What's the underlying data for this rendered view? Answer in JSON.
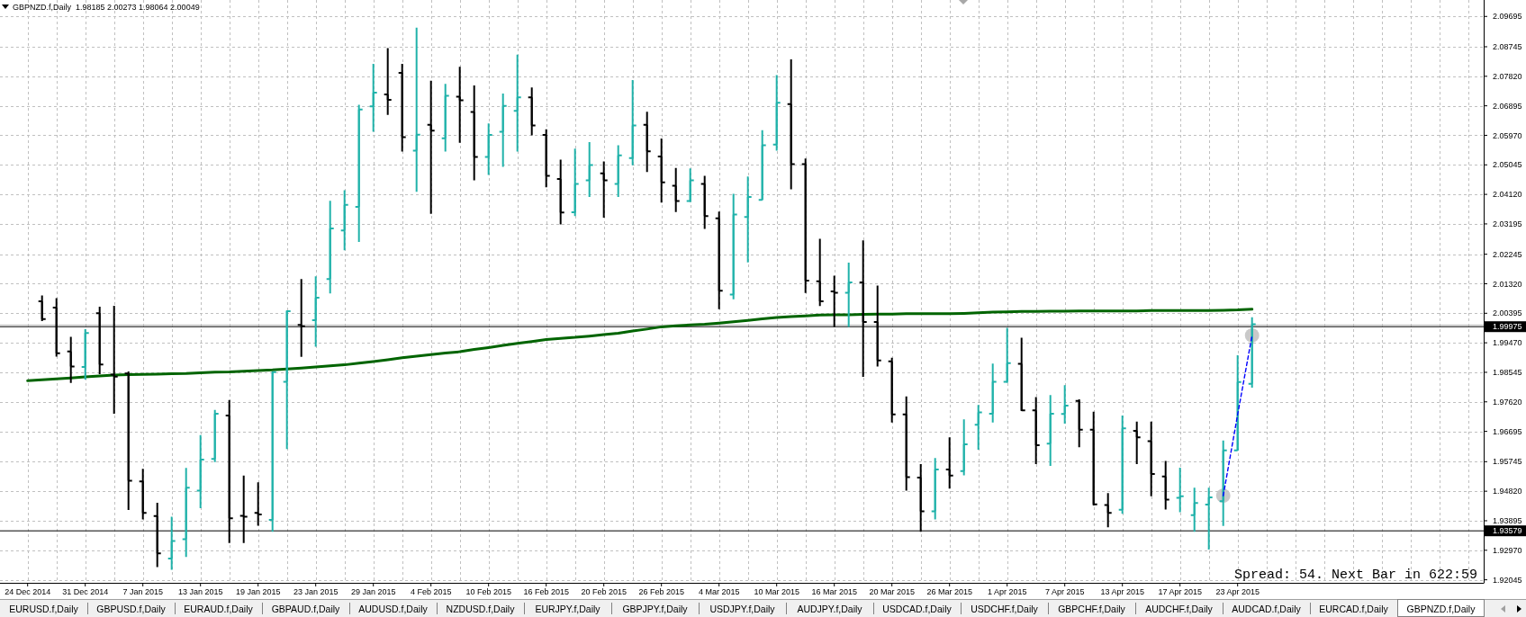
{
  "chart_data": {
    "type": "candlestick",
    "title": "GBPNZD.f,Daily  1.98185 2.00273 1.98064 2.00049",
    "categories": [
      "24 Dec 2014",
      null,
      null,
      null,
      "31 Dec 2014",
      null,
      null,
      null,
      "7 Jan 2015",
      null,
      null,
      null,
      "13 Jan 2015",
      null,
      null,
      null,
      "19 Jan 2015",
      null,
      null,
      null,
      "23 Jan 2015",
      null,
      null,
      null,
      "29 Jan 2015",
      null,
      null,
      null,
      "4 Feb 2015",
      null,
      null,
      null,
      "10 Feb 2015",
      null,
      null,
      null,
      "16 Feb 2015",
      null,
      null,
      null,
      "20 Feb 2015",
      null,
      null,
      null,
      "26 Feb 2015",
      null,
      null,
      null,
      "4 Mar 2015",
      null,
      null,
      null,
      "10 Mar 2015",
      null,
      null,
      null,
      "16 Mar 2015",
      null,
      null,
      null,
      "20 Mar 2015",
      null,
      null,
      null,
      "26 Mar 2015",
      null,
      null,
      null,
      "1 Apr 2015",
      null,
      null,
      null,
      "7 Apr 2015",
      null,
      null,
      null,
      "13 Apr 2015",
      null,
      null,
      null,
      "17 Apr 2015",
      null,
      null,
      null,
      "23 Apr 2015",
      null
    ],
    "ohlc": [
      null,
      [
        2.0077,
        2.0095,
        2.0015,
        2.0021
      ],
      [
        2.0057,
        2.0087,
        1.9904,
        1.9914
      ],
      [
        1.992,
        1.9966,
        1.9821,
        1.9873
      ],
      [
        1.9871,
        1.999,
        1.9832,
        1.9978
      ],
      [
        2.004,
        2.006,
        1.9849,
        1.9879
      ],
      [
        1.9847,
        2.0063,
        1.9725,
        1.9841
      ],
      [
        1.9851,
        1.9857,
        1.9423,
        1.9515
      ],
      [
        1.9513,
        1.9552,
        1.9394,
        1.9414
      ],
      [
        1.9404,
        1.9446,
        1.9244,
        1.9287
      ],
      [
        1.9271,
        1.9402,
        1.9236,
        1.9326
      ],
      [
        1.9332,
        1.9555,
        1.9276,
        1.9493
      ],
      [
        1.9484,
        1.9658,
        1.9429,
        1.9581
      ],
      [
        1.9583,
        1.9737,
        1.9573,
        1.9725
      ],
      [
        1.9719,
        1.9768,
        1.932,
        1.9397
      ],
      [
        1.9405,
        1.9531,
        1.932,
        1.9402
      ],
      [
        1.9414,
        1.951,
        1.9374,
        1.9409
      ],
      [
        1.9392,
        1.9857,
        1.9355,
        1.9855
      ],
      [
        1.9825,
        2.0049,
        1.9614,
        2.0046
      ],
      [
        2.0003,
        2.0147,
        1.9903,
        1.9999
      ],
      [
        2.0018,
        2.0155,
        1.9935,
        2.0088
      ],
      [
        2.0147,
        2.0392,
        2.0102,
        2.0305
      ],
      [
        2.0299,
        2.0425,
        2.0237,
        2.0379
      ],
      [
        2.0373,
        2.0693,
        2.0263,
        2.0678
      ],
      [
        2.0688,
        2.0821,
        2.0608,
        2.0731
      ],
      [
        2.0725,
        2.087,
        2.0661,
        2.0708
      ],
      [
        2.0793,
        2.0821,
        2.0546,
        2.0591
      ],
      [
        2.0549,
        2.0934,
        2.042,
        2.0599
      ],
      [
        2.063,
        2.0768,
        2.0351,
        2.0612
      ],
      [
        2.0588,
        2.0758,
        2.0546,
        2.0721
      ],
      [
        2.0718,
        2.0812,
        2.0574,
        2.0707
      ],
      [
        2.067,
        2.0753,
        2.0456,
        2.0529
      ],
      [
        2.0529,
        2.0634,
        2.0473,
        2.0598
      ],
      [
        2.0608,
        2.0728,
        2.0498,
        2.0689
      ],
      [
        2.0674,
        2.085,
        2.0546,
        2.0716
      ],
      [
        2.0716,
        2.0747,
        2.0597,
        2.0628
      ],
      [
        2.0598,
        2.0616,
        2.0434,
        2.047
      ],
      [
        2.046,
        2.0521,
        2.0318,
        2.0355
      ],
      [
        2.0356,
        2.0555,
        2.0344,
        2.0445
      ],
      [
        2.0456,
        2.0576,
        2.0404,
        2.0504
      ],
      [
        2.0478,
        2.0515,
        2.0339,
        2.0456
      ],
      [
        2.0445,
        2.0566,
        2.0404,
        2.0534
      ],
      [
        2.0526,
        2.077,
        2.0503,
        2.0628
      ],
      [
        2.063,
        2.0671,
        2.0482,
        2.0547
      ],
      [
        2.0531,
        2.0587,
        2.0386,
        2.045
      ],
      [
        2.0439,
        2.0495,
        2.0357,
        2.0391
      ],
      [
        2.0391,
        2.0493,
        2.0388,
        2.0456
      ],
      [
        2.0445,
        2.047,
        2.0304,
        2.0344
      ],
      [
        2.0337,
        2.0358,
        2.0052,
        2.011
      ],
      [
        2.0098,
        2.0414,
        2.0083,
        2.0349
      ],
      [
        2.0341,
        2.0468,
        2.0199,
        2.0404
      ],
      [
        2.0395,
        2.0613,
        2.0394,
        2.0566
      ],
      [
        2.0568,
        2.0786,
        2.0549,
        2.0699
      ],
      [
        2.0695,
        2.0835,
        2.0428,
        2.0507
      ],
      [
        2.0507,
        2.0524,
        2.0103,
        2.0142
      ],
      [
        2.014,
        2.0273,
        2.0062,
        2.0077
      ],
      [
        2.0108,
        2.0157,
        1.9997,
        2.0104
      ],
      [
        2.0104,
        2.0198,
        1.9997,
        2.0136
      ],
      [
        2.0136,
        2.0268,
        1.984,
        2.0012
      ],
      [
        2.0012,
        2.0126,
        1.9873,
        1.9892
      ],
      [
        1.9889,
        1.99,
        1.9697,
        1.9723
      ],
      [
        1.9723,
        1.9779,
        1.9484,
        1.9526
      ],
      [
        1.9525,
        1.9567,
        1.9355,
        1.9419
      ],
      [
        1.9419,
        1.9586,
        1.9394,
        1.955
      ],
      [
        1.955,
        1.9651,
        1.949,
        1.9531
      ],
      [
        1.9545,
        1.9707,
        1.9532,
        1.9629
      ],
      [
        1.969,
        1.9752,
        1.9612,
        1.9729
      ],
      [
        1.9725,
        1.9882,
        1.9697,
        1.9825
      ],
      [
        1.9825,
        1.9994,
        1.9821,
        1.9883
      ],
      [
        1.9881,
        1.9963,
        1.9733,
        1.9735
      ],
      [
        1.9735,
        1.9777,
        1.9567,
        1.9626
      ],
      [
        1.9631,
        1.9783,
        1.9561,
        1.9725
      ],
      [
        1.9724,
        1.9814,
        1.9694,
        1.975
      ],
      [
        1.9765,
        1.977,
        1.962,
        1.9675
      ],
      [
        1.9675,
        1.9731,
        1.9437,
        1.9441
      ],
      [
        1.9439,
        1.9476,
        1.9369,
        1.9414
      ],
      [
        1.9424,
        1.9719,
        1.9411,
        1.9679
      ],
      [
        1.9671,
        1.97,
        1.9567,
        1.9651
      ],
      [
        1.9639,
        1.97,
        1.9466,
        1.9536
      ],
      [
        1.9528,
        1.9577,
        1.9425,
        1.9456
      ],
      [
        1.9461,
        1.9556,
        1.9416,
        1.9466
      ],
      [
        1.9407,
        1.9493,
        1.9355,
        1.9445
      ],
      [
        1.944,
        1.9493,
        1.9299,
        1.9463
      ],
      [
        1.9451,
        1.9641,
        1.9373,
        1.961
      ],
      [
        1.961,
        1.9908,
        1.9609,
        1.9824
      ],
      [
        1.98185,
        2.00273,
        1.98064,
        2.00049
      ]
    ],
    "colors": [
      null,
      "#000000",
      "#000000",
      "#000000",
      "#20b2aa",
      "#000000",
      "#000000",
      "#000000",
      "#000000",
      "#000000",
      "#20b2aa",
      "#20b2aa",
      "#20b2aa",
      "#20b2aa",
      "#000000",
      "#000000",
      "#000000",
      "#20b2aa",
      "#20b2aa",
      "#000000",
      "#20b2aa",
      "#20b2aa",
      "#20b2aa",
      "#20b2aa",
      "#20b2aa",
      "#000000",
      "#000000",
      "#20b2aa",
      "#000000",
      "#20b2aa",
      "#000000",
      "#000000",
      "#20b2aa",
      "#20b2aa",
      "#20b2aa",
      "#000000",
      "#000000",
      "#000000",
      "#20b2aa",
      "#20b2aa",
      "#000000",
      "#20b2aa",
      "#20b2aa",
      "#000000",
      "#000000",
      "#000000",
      "#20b2aa",
      "#000000",
      "#000000",
      "#20b2aa",
      "#20b2aa",
      "#20b2aa",
      "#20b2aa",
      "#000000",
      "#000000",
      "#000000",
      "#000000",
      "#20b2aa",
      "#000000",
      "#000000",
      "#000000",
      "#000000",
      "#000000",
      "#20b2aa",
      "#000000",
      "#20b2aa",
      "#20b2aa",
      "#20b2aa",
      "#20b2aa",
      "#000000",
      "#000000",
      "#20b2aa",
      "#20b2aa",
      "#000000",
      "#000000",
      "#000000",
      "#20b2aa",
      "#000000",
      "#000000",
      "#000000",
      "#20b2aa",
      "#20b2aa",
      "#20b2aa",
      "#20b2aa",
      "#20b2aa",
      "#20b2aa"
    ],
    "series": [
      {
        "type": "line",
        "color": "#006400",
        "values": [
          1.9828,
          1.9831,
          1.9834,
          1.9837,
          1.984,
          1.9843,
          1.9846,
          1.9847,
          1.9848,
          1.9849,
          1.985,
          1.9851,
          1.9853,
          1.9855,
          1.9856,
          1.9858,
          1.986,
          1.9862,
          1.9865,
          1.9868,
          1.9871,
          1.9875,
          1.9878,
          1.9883,
          1.9888,
          1.9894,
          1.99,
          1.9905,
          1.991,
          1.9915,
          1.9919,
          1.9926,
          1.9932,
          1.9939,
          1.9945,
          1.9951,
          1.9957,
          1.9961,
          1.9964,
          1.9968,
          1.9973,
          1.9977,
          1.9984,
          1.999,
          1.9997,
          2.0,
          2.0003,
          2.0005,
          2.0009,
          2.0013,
          2.0017,
          2.0022,
          2.0026,
          2.0029,
          2.0031,
          2.0034,
          2.0035,
          2.0035,
          2.0036,
          2.0037,
          2.0037,
          2.0038,
          2.0038,
          2.0038,
          2.0038,
          2.0039,
          2.0041,
          2.0043,
          2.0044,
          2.0045,
          2.0045,
          2.0046,
          2.0046,
          2.0047,
          2.0047,
          2.0047,
          2.0047,
          2.0047,
          2.0048,
          2.0048,
          2.0048,
          2.0048,
          2.0048,
          2.0049,
          2.005,
          2.0052
        ]
      },
      {
        "type": "line",
        "color": "#0000ff",
        "line_style": "dashed",
        "values": [
          null,
          null,
          null,
          null,
          null,
          null,
          null,
          null,
          null,
          null,
          null,
          null,
          null,
          null,
          null,
          null,
          null,
          null,
          null,
          null,
          null,
          null,
          null,
          null,
          null,
          null,
          null,
          null,
          null,
          null,
          null,
          null,
          null,
          null,
          null,
          null,
          null,
          null,
          null,
          null,
          null,
          null,
          null,
          null,
          null,
          null,
          null,
          null,
          null,
          null,
          null,
          null,
          null,
          null,
          null,
          null,
          null,
          null,
          null,
          null,
          null,
          null,
          null,
          null,
          null,
          null,
          null,
          null,
          null,
          null,
          null,
          null,
          null,
          null,
          null,
          null,
          null,
          null,
          null,
          null,
          null,
          null,
          null,
          1.9468,
          1.9722,
          1.997
        ]
      },
      {
        "type": "scatter",
        "color": "#c0c0c0",
        "marker": "circle",
        "values": [
          null,
          null,
          null,
          null,
          null,
          null,
          null,
          null,
          null,
          null,
          null,
          null,
          null,
          null,
          null,
          null,
          null,
          null,
          null,
          null,
          null,
          null,
          null,
          null,
          null,
          null,
          null,
          null,
          null,
          null,
          null,
          null,
          null,
          null,
          null,
          null,
          null,
          null,
          null,
          null,
          null,
          null,
          null,
          null,
          null,
          null,
          null,
          null,
          null,
          null,
          null,
          null,
          null,
          null,
          null,
          null,
          null,
          null,
          null,
          null,
          null,
          null,
          null,
          null,
          null,
          null,
          null,
          null,
          null,
          null,
          null,
          null,
          null,
          null,
          null,
          null,
          null,
          null,
          null,
          null,
          null,
          null,
          null,
          1.9468,
          null,
          1.997
        ]
      }
    ],
    "ylim": [
      1.9195,
      2.1021
    ],
    "yticks": [
      2.09695,
      2.08745,
      {
        "value": 2.0782,
        "label": "2.07820"
      },
      2.06895,
      {
        "value": 2.0597,
        "label": "2.05970"
      },
      2.05045,
      {
        "value": 2.0412,
        "label": "2.04120"
      },
      2.03195,
      2.02245,
      {
        "value": 2.0132,
        "label": "2.01320"
      },
      2.00395,
      {
        "value": 1.9947,
        "label": "1.99470"
      },
      1.98545,
      {
        "value": 1.9762,
        "label": "1.97620"
      },
      1.96695,
      1.95745,
      {
        "value": 1.9482,
        "label": "1.94820"
      },
      1.93895,
      {
        "value": 1.9297,
        "label": "1.92970"
      },
      1.92045
    ],
    "grid": true,
    "ref_lines": [
      {
        "axis": "y",
        "value": 2.0003,
        "color": "#c0c0c0"
      },
      {
        "axis": "y",
        "value": 1.99975,
        "label": "1.99975",
        "color": "#000000"
      },
      {
        "axis": "y",
        "value": 1.93579,
        "label": "1.93579",
        "color": "#000000"
      }
    ],
    "annotations": [
      "Spread: 54. Next Bar in 622:59",
      "EURUSD.f,Daily",
      "GBPUSD.f,Daily",
      "EURAUD.f,Daily",
      "GBPAUD.f,Daily",
      "AUDUSD.f,Daily",
      "NZDUSD.f,Daily",
      "EURJPY.f,Daily",
      "GBPJPY.f,Daily",
      "USDJPY.f,Daily",
      "AUDJPY.f,Daily",
      "USDCAD.f,Daily",
      "USDCHF.f,Daily",
      "GBPCHF.f,Daily",
      "AUDCHF.f,Daily",
      "AUDCAD.f,Daily",
      "EURCAD.f,Daily",
      "GBPNZD.f,Daily"
    ]
  }
}
